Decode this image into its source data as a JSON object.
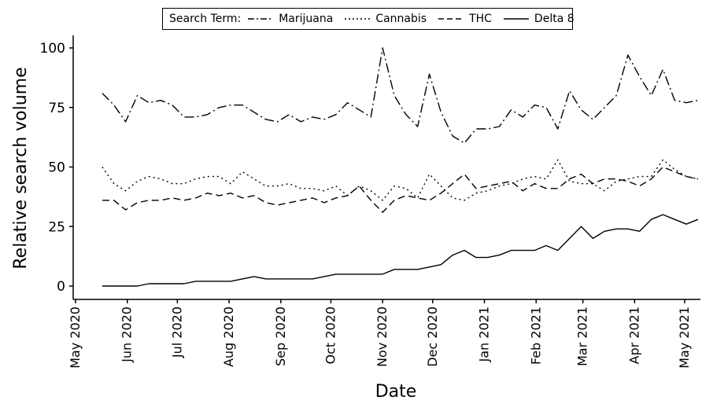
{
  "chart_data": {
    "type": "line",
    "xlabel": "Date",
    "ylabel": "Relative search volume",
    "ylim": [
      0,
      100
    ],
    "yticks": [
      0,
      25,
      50,
      75,
      100
    ],
    "x_tick_labels": [
      "May 2020",
      "Jun 2020",
      "Jul 2020",
      "Aug 2020",
      "Sep 2020",
      "Oct 2020",
      "Nov 2020",
      "Dec 2020",
      "Jan 2021",
      "Feb 2021",
      "Mar 2021",
      "Apr 2021",
      "May 2021"
    ],
    "legend_title": "Search Term:",
    "legend_position": "top",
    "grid": false,
    "x": [
      "2020-05-17",
      "2020-05-24",
      "2020-05-31",
      "2020-06-07",
      "2020-06-14",
      "2020-06-21",
      "2020-06-28",
      "2020-07-05",
      "2020-07-12",
      "2020-07-19",
      "2020-07-26",
      "2020-08-02",
      "2020-08-09",
      "2020-08-16",
      "2020-08-23",
      "2020-08-30",
      "2020-09-06",
      "2020-09-13",
      "2020-09-20",
      "2020-09-27",
      "2020-10-04",
      "2020-10-11",
      "2020-10-18",
      "2020-10-25",
      "2020-11-01",
      "2020-11-08",
      "2020-11-15",
      "2020-11-22",
      "2020-11-29",
      "2020-12-06",
      "2020-12-13",
      "2020-12-20",
      "2020-12-27",
      "2021-01-03",
      "2021-01-10",
      "2021-01-17",
      "2021-01-24",
      "2021-01-31",
      "2021-02-07",
      "2021-02-14",
      "2021-02-21",
      "2021-02-28",
      "2021-03-07",
      "2021-03-14",
      "2021-03-21",
      "2021-03-28",
      "2021-04-04",
      "2021-04-11",
      "2021-04-18",
      "2021-04-25",
      "2021-05-02",
      "2021-05-09"
    ],
    "series": [
      {
        "name": "Marijuana",
        "dash": "12 4 2 4",
        "values": [
          81,
          76,
          69,
          80,
          77,
          78,
          76,
          71,
          71,
          72,
          75,
          76,
          76,
          73,
          70,
          69,
          72,
          69,
          71,
          70,
          72,
          77,
          74,
          71,
          100,
          80,
          72,
          67,
          89,
          73,
          63,
          60,
          66,
          66,
          67,
          74,
          71,
          76,
          75,
          66,
          82,
          74,
          70,
          75,
          80,
          97,
          88,
          80,
          91,
          78,
          77,
          78
        ]
      },
      {
        "name": "Cannabis",
        "dash": "2 4",
        "values": [
          50,
          43,
          40,
          44,
          46,
          45,
          43,
          43,
          45,
          46,
          46,
          43,
          48,
          45,
          42,
          42,
          43,
          41,
          41,
          40,
          42,
          38,
          42,
          40,
          36,
          42,
          41,
          37,
          47,
          42,
          37,
          36,
          39,
          40,
          42,
          43,
          45,
          46,
          45,
          53,
          44,
          43,
          43,
          40,
          44,
          45,
          46,
          46,
          53,
          49,
          46,
          45
        ]
      },
      {
        "name": "THC",
        "dash": "9 5",
        "values": [
          36,
          36,
          32,
          35,
          36,
          36,
          37,
          36,
          37,
          39,
          38,
          39,
          37,
          38,
          35,
          34,
          35,
          36,
          37,
          35,
          37,
          38,
          42,
          36,
          31,
          36,
          38,
          37,
          36,
          39,
          43,
          47,
          41,
          42,
          43,
          44,
          40,
          43,
          41,
          41,
          45,
          47,
          43,
          45,
          45,
          44,
          42,
          45,
          50,
          48,
          46,
          45
        ]
      },
      {
        "name": "Delta 8",
        "dash": "",
        "values": [
          0,
          0,
          0,
          0,
          1,
          1,
          1,
          1,
          2,
          2,
          2,
          2,
          3,
          4,
          3,
          3,
          3,
          3,
          3,
          4,
          5,
          5,
          5,
          5,
          5,
          7,
          7,
          7,
          8,
          9,
          13,
          15,
          12,
          12,
          13,
          15,
          15,
          15,
          17,
          15,
          20,
          25,
          20,
          23,
          24,
          24,
          23,
          28,
          30,
          28,
          26,
          28
        ]
      }
    ]
  }
}
